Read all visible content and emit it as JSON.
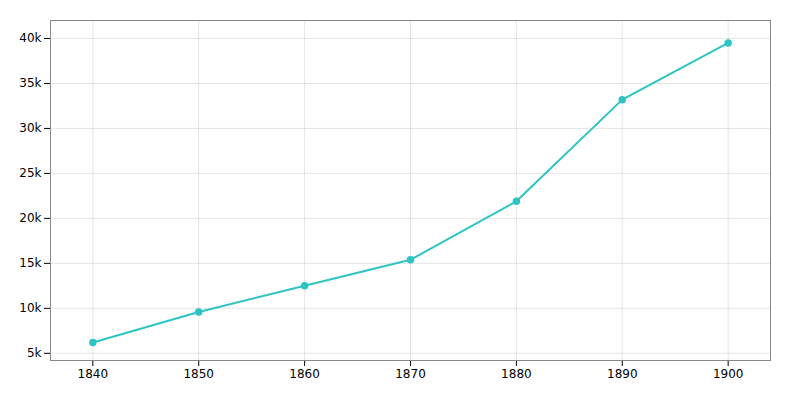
{
  "chart_data": {
    "type": "line",
    "x": [
      1840,
      1850,
      1860,
      1870,
      1880,
      1890,
      1900
    ],
    "values": [
      6200,
      9600,
      12500,
      15400,
      21900,
      33200,
      39500
    ],
    "color": "#2ec4c4",
    "marker": "circle",
    "xlim": [
      1836,
      1904
    ],
    "xticks": [
      1840,
      1850,
      1860,
      1870,
      1880,
      1890,
      1900
    ],
    "ylim": [
      4200,
      42000
    ],
    "yticks": [
      {
        "value": 5000,
        "label": "5k"
      },
      {
        "value": 10000,
        "label": "10k"
      },
      {
        "value": 15000,
        "label": "15k"
      },
      {
        "value": 20000,
        "label": "20k"
      },
      {
        "value": 25000,
        "label": "25k"
      },
      {
        "value": 30000,
        "label": "30k"
      },
      {
        "value": 35000,
        "label": "35k"
      },
      {
        "value": 40000,
        "label": "40k"
      }
    ],
    "grid": true
  }
}
